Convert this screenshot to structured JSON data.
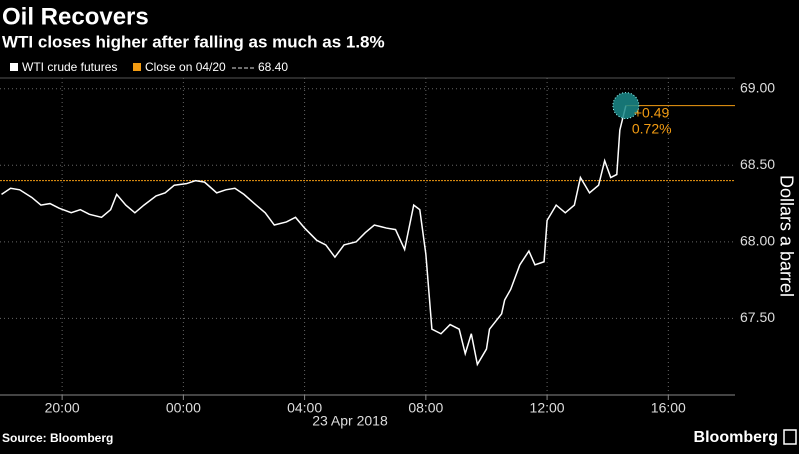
{
  "chart_data": {
    "type": "line",
    "title": "Oil Recovers",
    "subtitle": "WTI closes higher after falling as much as 1.8%",
    "y_label": "Dollars a barrel",
    "date_label": "23 Apr 2018",
    "source": "Source: Bloomberg",
    "brand": "Bloomberg",
    "xlim": [
      -6.05,
      18.2
    ],
    "xticks": [
      {
        "value": -4,
        "label": "20:00"
      },
      {
        "value": 0,
        "label": "00:00"
      },
      {
        "value": 4,
        "label": "04:00"
      },
      {
        "value": 8,
        "label": "08:00"
      },
      {
        "value": 12,
        "label": "12:00"
      },
      {
        "value": 16,
        "label": "16:00"
      }
    ],
    "ylim": [
      67.0,
      69.07
    ],
    "yticks": [
      {
        "value": 67.5,
        "label": "67.50"
      },
      {
        "value": 68,
        "label": "68.00"
      },
      {
        "value": 68.5,
        "label": "68.50"
      },
      {
        "value": 69,
        "label": "69.00"
      }
    ],
    "grid": true,
    "x": [
      -6.0,
      -5.7,
      -5.4,
      -5.0,
      -4.7,
      -4.4,
      -4.1,
      -3.7,
      -3.4,
      -3.1,
      -2.7,
      -2.4,
      -2.2,
      -1.9,
      -1.6,
      -1.3,
      -0.9,
      -0.6,
      -0.3,
      0.1,
      0.4,
      0.7,
      1.1,
      1.4,
      1.7,
      2.0,
      2.4,
      2.7,
      3.0,
      3.4,
      3.7,
      4.0,
      4.4,
      4.7,
      5.0,
      5.3,
      5.7,
      6.0,
      6.3,
      6.7,
      7.0,
      7.3,
      7.6,
      7.8,
      8.0,
      8.2,
      8.5,
      8.8,
      9.1,
      9.3,
      9.5,
      9.7,
      10.0,
      10.1,
      10.5,
      10.6,
      10.8,
      11.1,
      11.4,
      11.6,
      11.9,
      12.0,
      12.3,
      12.6,
      12.9,
      13.1,
      13.4,
      13.7,
      13.9,
      14.1,
      14.3,
      14.4,
      14.6
    ],
    "series": [
      {
        "name": "WTI crude futures",
        "color": "#ffffff",
        "values": [
          68.31,
          68.35,
          68.34,
          68.29,
          68.24,
          68.25,
          68.22,
          68.19,
          68.21,
          68.18,
          68.16,
          68.21,
          68.31,
          68.24,
          68.19,
          68.24,
          68.3,
          68.32,
          68.37,
          68.38,
          68.4,
          68.39,
          68.32,
          68.34,
          68.35,
          68.31,
          68.24,
          68.19,
          68.11,
          68.13,
          68.16,
          68.09,
          68.01,
          67.98,
          67.9,
          67.98,
          68.0,
          68.06,
          68.11,
          68.09,
          68.08,
          67.95,
          68.24,
          68.21,
          67.92,
          67.43,
          67.4,
          67.46,
          67.43,
          67.27,
          67.4,
          67.2,
          67.3,
          67.43,
          67.53,
          67.62,
          67.69,
          67.85,
          67.94,
          67.85,
          67.87,
          68.14,
          68.24,
          68.19,
          68.24,
          68.42,
          68.32,
          68.37,
          68.53,
          68.42,
          68.44,
          68.73,
          68.89
        ]
      }
    ],
    "reference_line": {
      "name": "Close on 04/20",
      "value": 68.4,
      "value_label": "68.40",
      "color": "#f39c12"
    },
    "annotations": [
      {
        "text": "+0.49",
        "color": "#f39c12"
      },
      {
        "text": "0.72%",
        "color": "#f39c12"
      }
    ]
  }
}
